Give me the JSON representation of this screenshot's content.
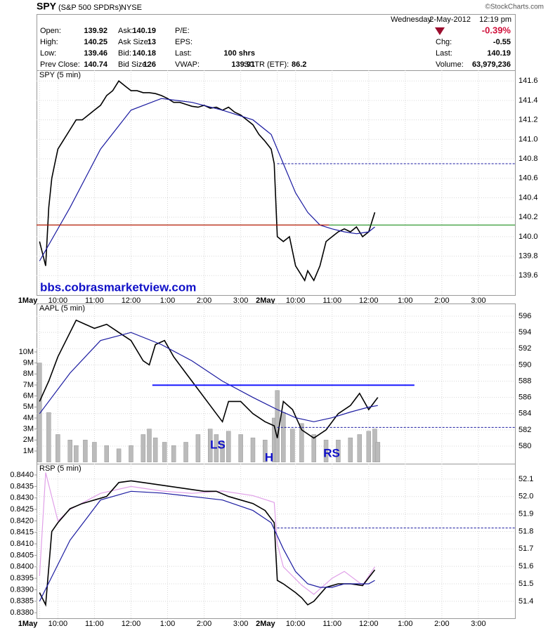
{
  "header": {
    "symbol": "SPY",
    "name": "(S&P 500 SPDRs)",
    "exchange": "NYSE",
    "logo": "©StockCharts.com",
    "date": [
      "Wednesday",
      "2-May-2012",
      "12:19 pm"
    ],
    "change_pct": "-0.39%",
    "columns": [
      [
        {
          "label": "Open:",
          "value": "139.92"
        },
        {
          "label": "High:",
          "value": "140.25"
        },
        {
          "label": "Low:",
          "value": "139.46"
        },
        {
          "label": "Prev Close:",
          "value": "140.74"
        }
      ],
      [
        {
          "label": "Ask:",
          "value": "140.19"
        },
        {
          "label": "Ask Size:",
          "value": "13"
        },
        {
          "label": "Bid:",
          "value": "140.18"
        },
        {
          "label": "Bid Size:",
          "value": "126"
        }
      ],
      [
        {
          "label": "P/E:"
        },
        {
          "label": "EPS:"
        },
        {
          "label": "Last:",
          "value": "100 shrs"
        },
        {
          "label": "VWAP:",
          "value": "139.91"
        }
      ]
    ],
    "sctr": {
      "label": "SCTR (ETF):",
      "value": "86.2"
    },
    "right": [
      {
        "label": "Chg:",
        "value": "-0.55"
      },
      {
        "label": "Last:",
        "value": "140.19"
      },
      {
        "label": "Volume:",
        "value": "63,979,236"
      }
    ]
  },
  "chart_data": [
    {
      "type": "line",
      "label": "SPY (5 min)",
      "watermark": "bbs.cobrasmarketview.com",
      "xlim": [
        -1,
        156
      ],
      "ylim": [
        139.4,
        141.71
      ],
      "xticks": [
        {
          "value": 0,
          "label": "1May"
        },
        {
          "value": 6,
          "label": "10:00"
        },
        {
          "value": 18,
          "label": "11:00"
        },
        {
          "value": 30,
          "label": "12:00"
        },
        {
          "value": 42,
          "label": "1:00"
        },
        {
          "value": 54,
          "label": "2:00"
        },
        {
          "value": 66,
          "label": "3:00"
        },
        {
          "value": 78,
          "label": "2May"
        },
        {
          "value": 84,
          "label": "10:00"
        },
        {
          "value": 96,
          "label": "11:00"
        },
        {
          "value": 108,
          "label": "12:00"
        },
        {
          "value": 120,
          "label": "1:00"
        },
        {
          "value": 132,
          "label": "2:00"
        },
        {
          "value": 144,
          "label": "3:00"
        }
      ],
      "yticks": [
        139.6,
        139.8,
        {
          "value": 140.0,
          "label": "140.0"
        },
        140.2,
        140.4,
        140.6,
        140.8,
        {
          "value": 141.0,
          "label": "141.0"
        },
        141.2,
        141.4,
        141.6
      ],
      "hlines": [
        {
          "value": 140.12,
          "color": "#008000"
        },
        {
          "value": 140.12,
          "color": "#dd0000",
          "to": 95
        },
        {
          "value": 140.75,
          "color": "#1a1aa0",
          "dashed": true,
          "from": 78
        }
      ],
      "series": [
        {
          "color": "#000000",
          "x": [
            0,
            2,
            3,
            4,
            5,
            6,
            8,
            10,
            12,
            14,
            16,
            18,
            20,
            22,
            24,
            26,
            28,
            30,
            32,
            34,
            36,
            38,
            40,
            42,
            44,
            46,
            48,
            50,
            52,
            54,
            56,
            58,
            60,
            62,
            64,
            66,
            68,
            70,
            72,
            74,
            76,
            77,
            78,
            80,
            82,
            84,
            86,
            87,
            88,
            90,
            92,
            94,
            96,
            98,
            100,
            102,
            104,
            106,
            108,
            110
          ],
          "values": [
            139.95,
            139.7,
            140.3,
            140.6,
            140.75,
            140.9,
            141.0,
            141.1,
            141.2,
            141.2,
            141.25,
            141.3,
            141.35,
            141.45,
            141.5,
            141.6,
            141.55,
            141.5,
            141.5,
            141.48,
            141.48,
            141.47,
            141.45,
            141.42,
            141.38,
            141.38,
            141.36,
            141.34,
            141.33,
            141.35,
            141.32,
            141.33,
            141.3,
            141.33,
            141.28,
            141.25,
            141.2,
            141.15,
            141.05,
            140.98,
            140.9,
            140.75,
            140.0,
            139.95,
            140.0,
            139.7,
            139.6,
            139.55,
            139.65,
            139.55,
            139.7,
            139.95,
            140.0,
            140.05,
            140.08,
            140.05,
            140.1,
            140.0,
            140.05,
            140.25
          ]
        },
        {
          "color": "#1a1aa0",
          "x": [
            0,
            10,
            20,
            30,
            40,
            50,
            60,
            70,
            76,
            80,
            84,
            88,
            92,
            96,
            100,
            104,
            108,
            110
          ],
          "values": [
            139.75,
            140.3,
            140.9,
            141.3,
            141.42,
            141.38,
            141.3,
            141.2,
            141.05,
            140.75,
            140.45,
            140.25,
            140.12,
            140.08,
            140.05,
            140.03,
            140.05,
            140.1
          ]
        }
      ]
    },
    {
      "type": "line",
      "label": "AAPL (5 min)",
      "annotations": [
        "LS",
        "H",
        "RS"
      ],
      "xlim": [
        -1,
        156
      ],
      "ylim": [
        577.84,
        597.56
      ],
      "y2lim": [
        -150000,
        14400000
      ],
      "yticks": [
        580,
        582,
        584,
        586,
        588,
        590,
        592,
        594,
        596
      ],
      "y2ticks": [
        {
          "value": 1000000,
          "label": "1M"
        },
        {
          "value": 2000000,
          "label": "2M"
        },
        {
          "value": 3000000,
          "label": "3M"
        },
        {
          "value": 4000000,
          "label": "4M"
        },
        {
          "value": 5000000,
          "label": "5M"
        },
        {
          "value": 6000000,
          "label": "6M"
        },
        {
          "value": 7000000,
          "label": "7M"
        },
        {
          "value": 8000000,
          "label": "8M"
        },
        {
          "value": 9000000,
          "label": "9M"
        },
        {
          "value": 10000000,
          "label": "10M"
        }
      ],
      "hlines": [
        {
          "value": 587.5,
          "color": "#1a1aff",
          "from": 37,
          "to": 123,
          "width": 2
        },
        {
          "value": 582.3,
          "color": "#1a1aa0",
          "dashed": true,
          "from": 78
        }
      ],
      "series": [
        {
          "type": "bar",
          "axis": "y2",
          "color": "#bbbbbb",
          "x": [
            0,
            3,
            6,
            10,
            12,
            15,
            18,
            22,
            26,
            30,
            34,
            36,
            38,
            41,
            44,
            48,
            52,
            56,
            58,
            60,
            62,
            66,
            70,
            74,
            77,
            78,
            80,
            83,
            86,
            90,
            94,
            98,
            102,
            105,
            108,
            110,
            111
          ],
          "values": [
            9000000,
            4500000,
            2500000,
            2000000,
            1500000,
            2000000,
            1800000,
            1500000,
            1200000,
            1500000,
            2500000,
            3000000,
            2200000,
            1800000,
            1500000,
            1800000,
            2500000,
            3000000,
            2500000,
            1800000,
            2800000,
            2500000,
            2200000,
            2000000,
            4000000,
            6500000,
            4500000,
            3000000,
            3500000,
            2500000,
            2000000,
            2000000,
            2200000,
            2500000,
            2800000,
            3000000,
            1800000
          ]
        },
        {
          "color": "#000000",
          "x": [
            0,
            3,
            6,
            10,
            12,
            15,
            18,
            22,
            26,
            30,
            34,
            36,
            38,
            41,
            44,
            48,
            52,
            56,
            58,
            60,
            62,
            66,
            70,
            74,
            77,
            78,
            80,
            83,
            86,
            90,
            94,
            98,
            102,
            105,
            108,
            110,
            111
          ],
          "values": [
            585.5,
            588,
            591,
            594,
            595.5,
            595,
            594.5,
            595,
            594,
            593,
            590.5,
            590,
            592.5,
            593,
            591,
            589,
            587,
            585,
            584,
            583,
            585.5,
            585.5,
            584,
            583,
            582.5,
            581,
            585.5,
            584.5,
            582,
            581,
            582,
            584,
            585,
            586.5,
            584.5,
            585.5,
            586
          ]
        },
        {
          "color": "#1a1aa0",
          "x": [
            0,
            10,
            20,
            30,
            40,
            50,
            60,
            70,
            78,
            84,
            90,
            96,
            102,
            108,
            111
          ],
          "values": [
            584,
            589,
            593,
            594,
            592.5,
            590.5,
            588,
            586,
            584.5,
            583.5,
            583,
            583.5,
            584.2,
            584.8,
            585
          ]
        }
      ]
    },
    {
      "type": "line",
      "label": "RSP (5 min)",
      "xlim": [
        -1,
        156
      ],
      "ylim": [
        51.303,
        52.188
      ],
      "y2lim": [
        0.83776,
        0.84449
      ],
      "xticks": [
        {
          "value": 0,
          "label": "1May"
        },
        {
          "value": 6,
          "label": "10:00"
        },
        {
          "value": 18,
          "label": "11:00"
        },
        {
          "value": 30,
          "label": "12:00"
        },
        {
          "value": 42,
          "label": "1:00"
        },
        {
          "value": 54,
          "label": "2:00"
        },
        {
          "value": 66,
          "label": "3:00"
        },
        {
          "value": 78,
          "label": "2May"
        },
        {
          "value": 84,
          "label": "10:00"
        },
        {
          "value": 96,
          "label": "11:00"
        },
        {
          "value": 108,
          "label": "12:00"
        },
        {
          "value": 120,
          "label": "1:00"
        },
        {
          "value": 132,
          "label": "2:00"
        },
        {
          "value": 144,
          "label": "3:00"
        }
      ],
      "yticks": [
        51.4,
        51.5,
        51.6,
        51.7,
        51.8,
        51.9,
        {
          "value": 52.0,
          "label": "52.0"
        },
        52.1
      ],
      "y2ticks": [
        {
          "value": 0.838,
          "label": "0.8380"
        },
        0.8385,
        {
          "value": 0.839,
          "label": "0.8390"
        },
        0.8395,
        {
          "value": 0.84,
          "label": "0.8400"
        },
        0.8405,
        {
          "value": 0.841,
          "label": "0.8410"
        },
        0.8415,
        {
          "value": 0.842,
          "label": "0.8420"
        },
        0.8425,
        {
          "value": 0.843,
          "label": "0.8430"
        },
        0.8435,
        {
          "value": 0.844,
          "label": "0.8440"
        }
      ],
      "hlines": [
        {
          "value": 51.82,
          "color": "#1a1aa0",
          "dashed": true,
          "from": 78
        }
      ],
      "series": [
        {
          "axis": "y2",
          "color": "#e0a0e8",
          "x": [
            0,
            2,
            6,
            10,
            20,
            30,
            40,
            50,
            60,
            70,
            77,
            78,
            80,
            86,
            90,
            96,
            100,
            106,
            110
          ],
          "values": [
            0.8396,
            0.8441,
            0.842,
            0.8425,
            0.8432,
            0.8435,
            0.8433,
            0.8432,
            0.8433,
            0.8431,
            0.8428,
            0.841,
            0.84,
            0.8392,
            0.8388,
            0.8395,
            0.8398,
            0.8392,
            0.84
          ]
        },
        {
          "color": "#000000",
          "x": [
            0,
            2,
            4,
            6,
            10,
            14,
            18,
            22,
            26,
            30,
            34,
            38,
            42,
            46,
            50,
            54,
            58,
            62,
            66,
            70,
            74,
            77,
            78,
            80,
            84,
            86,
            88,
            90,
            94,
            98,
            102,
            106,
            110
          ],
          "values": [
            51.45,
            51.38,
            51.8,
            51.85,
            51.93,
            51.96,
            51.98,
            52.0,
            52.08,
            52.09,
            52.08,
            52.07,
            52.06,
            52.05,
            52.04,
            52.03,
            52.03,
            52.0,
            51.98,
            51.96,
            51.92,
            51.85,
            51.52,
            51.5,
            51.45,
            51.42,
            51.38,
            51.4,
            51.48,
            51.5,
            51.5,
            51.49,
            51.58
          ]
        },
        {
          "color": "#1a1aa0",
          "x": [
            0,
            10,
            20,
            30,
            40,
            50,
            60,
            70,
            76,
            80,
            84,
            88,
            92,
            96,
            100,
            104,
            108,
            110
          ],
          "values": [
            51.4,
            51.75,
            51.98,
            52.03,
            52.02,
            52.0,
            51.98,
            51.92,
            51.85,
            51.7,
            51.57,
            51.5,
            51.48,
            51.48,
            51.5,
            51.5,
            51.5,
            51.52
          ]
        }
      ]
    }
  ]
}
